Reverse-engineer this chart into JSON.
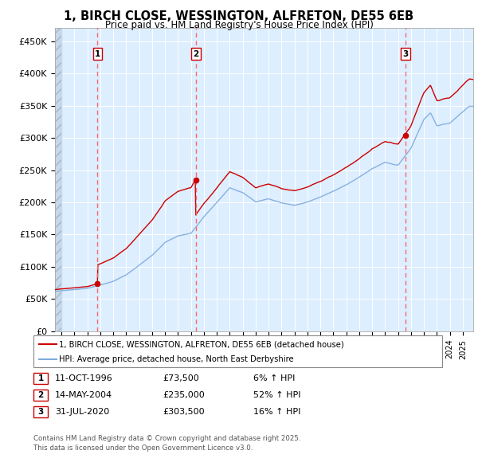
{
  "title_line1": "1, BIRCH CLOSE, WESSINGTON, ALFRETON, DE55 6EB",
  "title_line2": "Price paid vs. HM Land Registry's House Price Index (HPI)",
  "ylim": [
    0,
    470000
  ],
  "yticks": [
    0,
    50000,
    100000,
    150000,
    200000,
    250000,
    300000,
    350000,
    400000,
    450000
  ],
  "ytick_labels": [
    "£0",
    "£50K",
    "£100K",
    "£150K",
    "£200K",
    "£250K",
    "£300K",
    "£350K",
    "£400K",
    "£450K"
  ],
  "sale_dates": [
    1996.79,
    2004.37,
    2020.58
  ],
  "sale_prices": [
    73500,
    235000,
    303500
  ],
  "sale_labels": [
    "1",
    "2",
    "3"
  ],
  "hpi_line_color": "#7eaadd",
  "price_line_color": "#cc0000",
  "sale_dot_color": "#cc0000",
  "vline_color": "#ff6666",
  "background_color": "#ddeeff",
  "legend_line1": "1, BIRCH CLOSE, WESSINGTON, ALFRETON, DE55 6EB (detached house)",
  "legend_line2": "HPI: Average price, detached house, North East Derbyshire",
  "table_entries": [
    {
      "label": "1",
      "date": "11-OCT-1996",
      "price": "£73,500",
      "change": "6% ↑ HPI"
    },
    {
      "label": "2",
      "date": "14-MAY-2004",
      "price": "£235,000",
      "change": "52% ↑ HPI"
    },
    {
      "label": "3",
      "date": "31-JUL-2020",
      "price": "£303,500",
      "change": "16% ↑ HPI"
    }
  ],
  "footer": "Contains HM Land Registry data © Crown copyright and database right 2025.\nThis data is licensed under the Open Government Licence v3.0.",
  "xlim_start": 1993.5,
  "xlim_end": 2025.8
}
